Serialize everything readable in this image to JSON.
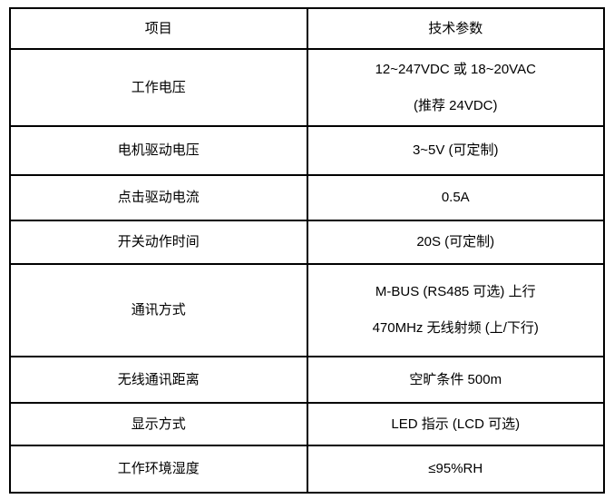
{
  "table": {
    "title_semantic": "技术参数表",
    "colors": {
      "border": "#000000",
      "text": "#000000",
      "background": "#ffffff"
    },
    "headers": [
      "项目",
      "技术参数"
    ],
    "rows": [
      {
        "item": "工作电压",
        "params": [
          "12~247VDC 或 18~20VAC",
          "(推荐 24VDC)"
        ]
      },
      {
        "item": "电机驱动电压",
        "params": [
          "3~5V (可定制)"
        ]
      },
      {
        "item": "点击驱动电流",
        "params": [
          "0.5A"
        ]
      },
      {
        "item": "开关动作时间",
        "params": [
          "20S (可定制)"
        ]
      },
      {
        "item": "通讯方式",
        "params": [
          "M-BUS (RS485 可选) 上行",
          "470MHz 无线射频 (上/下行)"
        ]
      },
      {
        "item": "无线通讯距离",
        "params": [
          "空旷条件 500m"
        ]
      },
      {
        "item": "显示方式",
        "params": [
          "LED 指示 (LCD 可选)"
        ]
      },
      {
        "item": "工作环境湿度",
        "params": [
          "≤95%RH"
        ]
      }
    ]
  }
}
